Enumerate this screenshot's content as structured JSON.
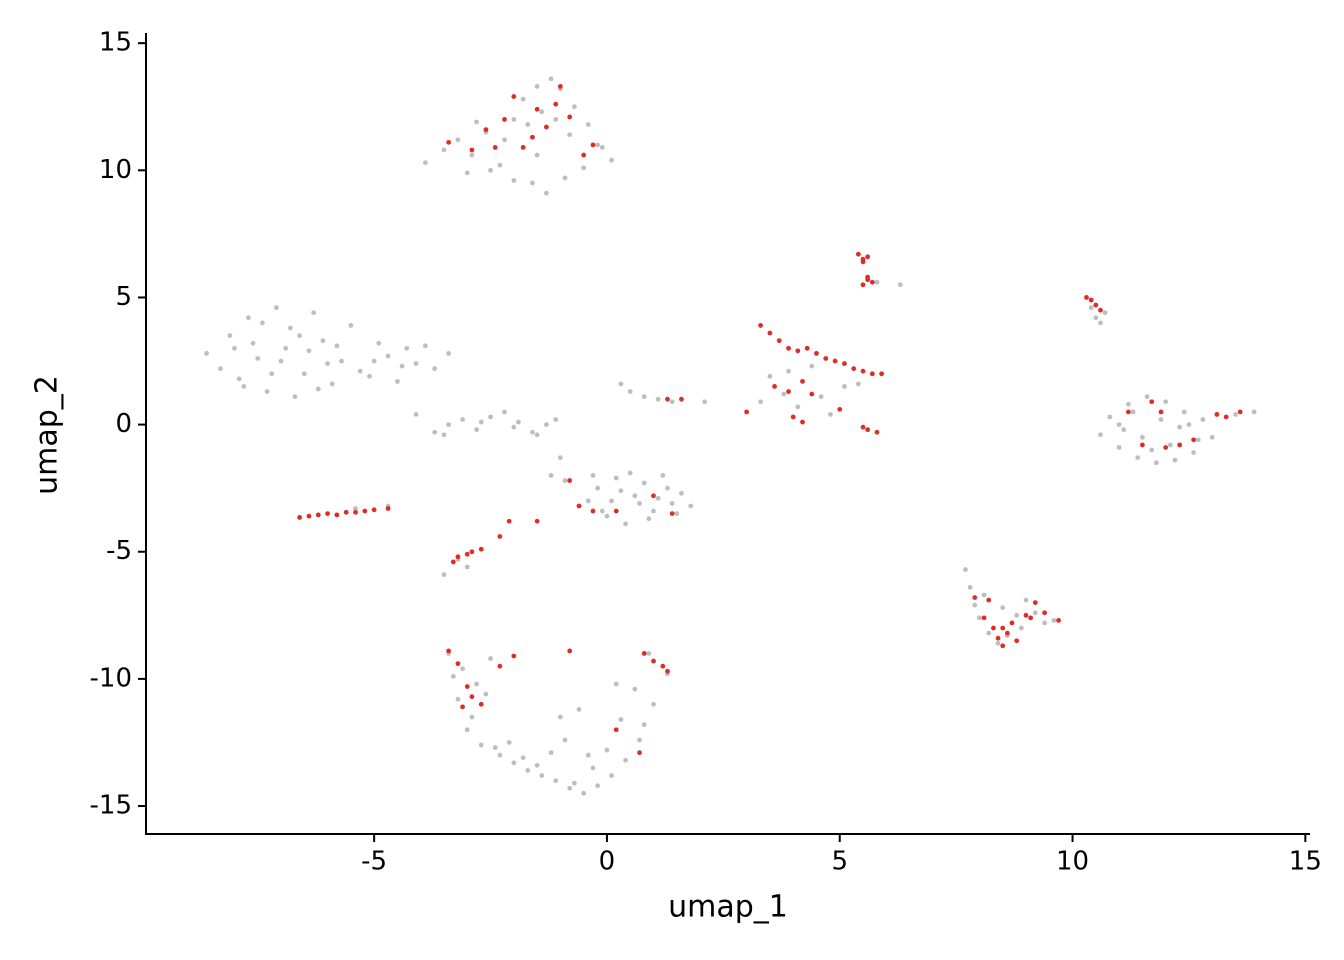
{
  "chart_data": {
    "type": "scatter",
    "xlabel": "umap_1",
    "ylabel": "umap_2",
    "xlim": [
      -9.9,
      15.1
    ],
    "ylim": [
      -16.1,
      15.4
    ],
    "xticks": [
      -5,
      0,
      5,
      10,
      15
    ],
    "yticks": [
      -15,
      -10,
      -5,
      0,
      5,
      10,
      15
    ],
    "grid": false,
    "series": [
      {
        "color": "#bebebe",
        "x": [
          -3.9,
          -3.5,
          -3.2,
          -2.9,
          -2.6,
          -2.3,
          -2.0,
          -1.8,
          -1.5,
          -1.2,
          -1.0,
          -0.7,
          -0.4,
          -0.2,
          0.1,
          -3.0,
          -2.5,
          -2.0,
          -1.6,
          -1.3,
          -0.9,
          -0.5,
          -0.1,
          -2.8,
          -2.2,
          -1.7,
          -1.4,
          -1.1,
          -0.8,
          -1.5,
          -8.6,
          -8.3,
          -8.1,
          -7.9,
          -7.7,
          -7.5,
          -7.3,
          -7.1,
          -6.9,
          -6.7,
          -6.5,
          -6.3,
          -6.1,
          -5.9,
          -5.7,
          -5.5,
          -5.3,
          -5.1,
          -4.9,
          -4.7,
          -4.5,
          -4.3,
          -4.1,
          -3.9,
          -3.7,
          -3.4,
          -8.0,
          -7.6,
          -7.2,
          -6.8,
          -6.4,
          -6.0,
          -7.8,
          -7.4,
          -7.0,
          -6.6,
          -6.2,
          -5.8,
          -5.0,
          -4.4,
          -4.1,
          -3.7,
          -3.4,
          -3.1,
          -2.8,
          -2.5,
          -2.2,
          -1.9,
          -1.6,
          -1.3,
          -1.1,
          -3.5,
          -2.7,
          -2.0,
          -1.5,
          -0.4,
          -0.2,
          0.0,
          0.2,
          0.4,
          0.6,
          0.8,
          1.0,
          1.2,
          1.4,
          1.6,
          1.8,
          0.1,
          0.5,
          0.9,
          1.3,
          -0.1,
          0.3,
          0.7,
          1.1,
          1.5,
          -0.3,
          -1.0,
          -0.9,
          -1.2,
          0.3,
          0.5,
          0.8,
          1.1,
          1.4,
          2.1,
          -3.4,
          -3.1,
          -2.8,
          -2.5,
          -3.2,
          -2.9,
          -2.6,
          -3.0,
          -2.7,
          -2.3,
          -3.3,
          -2.0,
          -1.7,
          -1.4,
          -1.1,
          -0.8,
          -0.5,
          -0.2,
          0.1,
          0.4,
          0.7,
          1.0,
          1.3,
          0.9,
          0.6,
          0.3,
          0.0,
          -0.3,
          -0.6,
          -0.9,
          -1.2,
          -1.5,
          -1.8,
          -2.1,
          -2.4,
          -0.7,
          -0.4,
          0.2,
          0.8,
          -1.0,
          10.6,
          10.8,
          11.0,
          11.2,
          11.4,
          11.6,
          11.8,
          12.0,
          12.2,
          12.4,
          12.6,
          12.8,
          13.0,
          11.1,
          11.5,
          11.9,
          12.3,
          12.7,
          11.3,
          11.7,
          12.1,
          12.5,
          13.5,
          13.9,
          11.0,
          7.7,
          7.8,
          7.9,
          8.0,
          8.2,
          8.4,
          8.6,
          8.8,
          9.0,
          9.2,
          9.4,
          9.6,
          8.1,
          8.5,
          8.9,
          3.5,
          3.8,
          4.1,
          4.4,
          4.8,
          5.1,
          3.3,
          3.9,
          4.6,
          5.4,
          6.3,
          5.8,
          10.5,
          10.6,
          10.7,
          10.4,
          -5.4,
          -4.7,
          -3.5,
          -3.2,
          -3.0
        ],
        "y": [
          10.3,
          10.8,
          11.2,
          10.6,
          11.5,
          10.2,
          12.0,
          12.8,
          13.3,
          13.6,
          13.2,
          12.5,
          11.8,
          11.0,
          10.4,
          9.9,
          10.0,
          9.6,
          9.5,
          9.1,
          9.7,
          10.1,
          10.9,
          11.9,
          11.2,
          11.8,
          12.3,
          12.0,
          11.4,
          10.6,
          2.8,
          2.2,
          3.5,
          1.8,
          4.2,
          2.6,
          1.3,
          4.6,
          3.0,
          1.1,
          2.0,
          4.4,
          3.3,
          1.6,
          2.5,
          3.9,
          2.1,
          1.9,
          3.2,
          2.7,
          1.7,
          3.0,
          2.4,
          3.1,
          2.2,
          2.8,
          3.0,
          3.2,
          2.0,
          3.8,
          2.9,
          2.4,
          1.5,
          4.0,
          2.5,
          3.5,
          1.4,
          3.1,
          2.5,
          2.3,
          0.4,
          -0.3,
          0.0,
          0.2,
          -0.2,
          0.3,
          0.5,
          0.1,
          -0.3,
          0.0,
          0.2,
          -0.4,
          0.1,
          -0.1,
          -0.4,
          -3.0,
          -2.5,
          -3.6,
          -2.1,
          -3.9,
          -2.8,
          -2.3,
          -3.4,
          -2.0,
          -3.1,
          -2.7,
          -3.2,
          -3.0,
          -1.9,
          -3.7,
          -2.5,
          -3.4,
          -2.6,
          -3.1,
          -2.9,
          -3.5,
          -2.0,
          -1.3,
          -2.2,
          -2.0,
          1.6,
          1.3,
          1.1,
          1.0,
          0.9,
          0.9,
          -9.0,
          -9.6,
          -10.2,
          -9.2,
          -10.8,
          -11.5,
          -10.6,
          -12.0,
          -12.6,
          -13.0,
          -9.9,
          -13.3,
          -13.6,
          -13.8,
          -14.0,
          -14.3,
          -14.5,
          -14.2,
          -13.8,
          -13.2,
          -12.4,
          -11.0,
          -9.8,
          -9.0,
          -10.4,
          -11.6,
          -12.8,
          -13.5,
          -11.2,
          -12.4,
          -12.9,
          -13.4,
          -13.1,
          -12.5,
          -12.7,
          -14.1,
          -13.0,
          -10.2,
          -11.8,
          -11.5,
          -0.4,
          0.3,
          -0.9,
          0.8,
          -1.3,
          1.1,
          -1.5,
          0.9,
          -1.4,
          0.5,
          -1.1,
          0.2,
          -0.5,
          -0.2,
          -0.5,
          0.2,
          -0.1,
          -0.6,
          0.5,
          -1.0,
          -0.8,
          0.0,
          0.4,
          0.5,
          0.0,
          -5.7,
          -6.4,
          -7.1,
          -7.6,
          -8.2,
          -8.6,
          -8.3,
          -7.5,
          -6.9,
          -7.4,
          -7.8,
          -7.7,
          -6.7,
          -7.2,
          -8.0,
          1.9,
          1.2,
          0.7,
          2.3,
          0.4,
          1.5,
          0.9,
          2.1,
          1.1,
          1.6,
          5.5,
          5.6,
          4.2,
          4.0,
          4.4,
          4.6,
          -3.3,
          -3.2,
          -5.9,
          -5.3,
          -5.6
        ]
      },
      {
        "color": "#de2d26",
        "x": [
          -3.4,
          -2.9,
          -2.6,
          -2.2,
          -2.0,
          -1.8,
          -1.5,
          -1.3,
          -1.0,
          -0.8,
          -0.5,
          -1.6,
          -1.1,
          -2.4,
          -0.3,
          5.4,
          5.5,
          5.6,
          5.5,
          5.6,
          5.7,
          5.5,
          5.6,
          10.3,
          10.4,
          10.5,
          10.6,
          3.3,
          3.5,
          3.7,
          3.9,
          4.1,
          4.3,
          4.5,
          4.7,
          4.9,
          5.1,
          5.3,
          5.5,
          5.7,
          5.9,
          3.6,
          3.9,
          4.2,
          4.4,
          4.0,
          4.2,
          5.0,
          5.5,
          5.8,
          3.0,
          5.6,
          11.2,
          11.5,
          11.7,
          12.0,
          12.3,
          12.6,
          13.1,
          13.3,
          13.6,
          11.9,
          7.9,
          8.1,
          8.3,
          8.4,
          8.5,
          8.6,
          8.7,
          8.8,
          9.0,
          9.2,
          9.4,
          9.7,
          8.2,
          8.5,
          9.1,
          -6.6,
          -6.4,
          -6.2,
          -6.0,
          -5.8,
          -5.6,
          -5.4,
          -5.2,
          -5.0,
          -4.7,
          -3.3,
          -3.2,
          -3.0,
          -2.9,
          -2.7,
          -2.3,
          -2.1,
          -1.5,
          -0.8,
          -0.6,
          -0.3,
          0.2,
          1.0,
          1.4,
          -3.4,
          -3.2,
          -3.0,
          -2.7,
          -2.3,
          -2.0,
          -0.8,
          -3.1,
          -2.9,
          0.8,
          1.0,
          1.2,
          1.3,
          0.2,
          0.7,
          1.3,
          1.6
        ],
        "y": [
          11.1,
          10.8,
          11.6,
          12.0,
          12.9,
          10.9,
          12.4,
          11.7,
          13.3,
          12.1,
          10.6,
          11.3,
          12.6,
          10.9,
          11.0,
          6.7,
          6.5,
          6.6,
          6.4,
          5.8,
          5.6,
          5.5,
          5.7,
          5.0,
          4.9,
          4.7,
          4.5,
          3.9,
          3.6,
          3.3,
          3.0,
          2.9,
          3.0,
          2.8,
          2.6,
          2.5,
          2.4,
          2.2,
          2.1,
          2.0,
          2.0,
          1.5,
          1.3,
          1.7,
          1.2,
          0.3,
          0.1,
          0.6,
          -0.1,
          -0.3,
          0.5,
          -0.2,
          0.5,
          -0.8,
          0.9,
          -0.9,
          -0.8,
          -0.6,
          0.4,
          0.3,
          0.5,
          0.5,
          -6.8,
          -7.6,
          -8.0,
          -8.4,
          -8.7,
          -8.2,
          -7.8,
          -8.5,
          -7.5,
          -7.0,
          -7.4,
          -7.7,
          -6.9,
          -8.0,
          -7.6,
          -3.65,
          -3.6,
          -3.55,
          -3.5,
          -3.55,
          -3.45,
          -3.45,
          -3.4,
          -3.35,
          -3.3,
          -5.4,
          -5.2,
          -5.1,
          -5.0,
          -4.9,
          -4.4,
          -3.8,
          -3.8,
          -2.2,
          -3.2,
          -3.4,
          -3.4,
          -2.8,
          -3.5,
          -8.9,
          -9.4,
          -10.3,
          -11.0,
          -9.5,
          -9.1,
          -8.9,
          -11.1,
          -10.7,
          -9.0,
          -9.3,
          -9.5,
          -9.7,
          -12.0,
          -12.9,
          1.0,
          1.0
        ]
      }
    ]
  }
}
